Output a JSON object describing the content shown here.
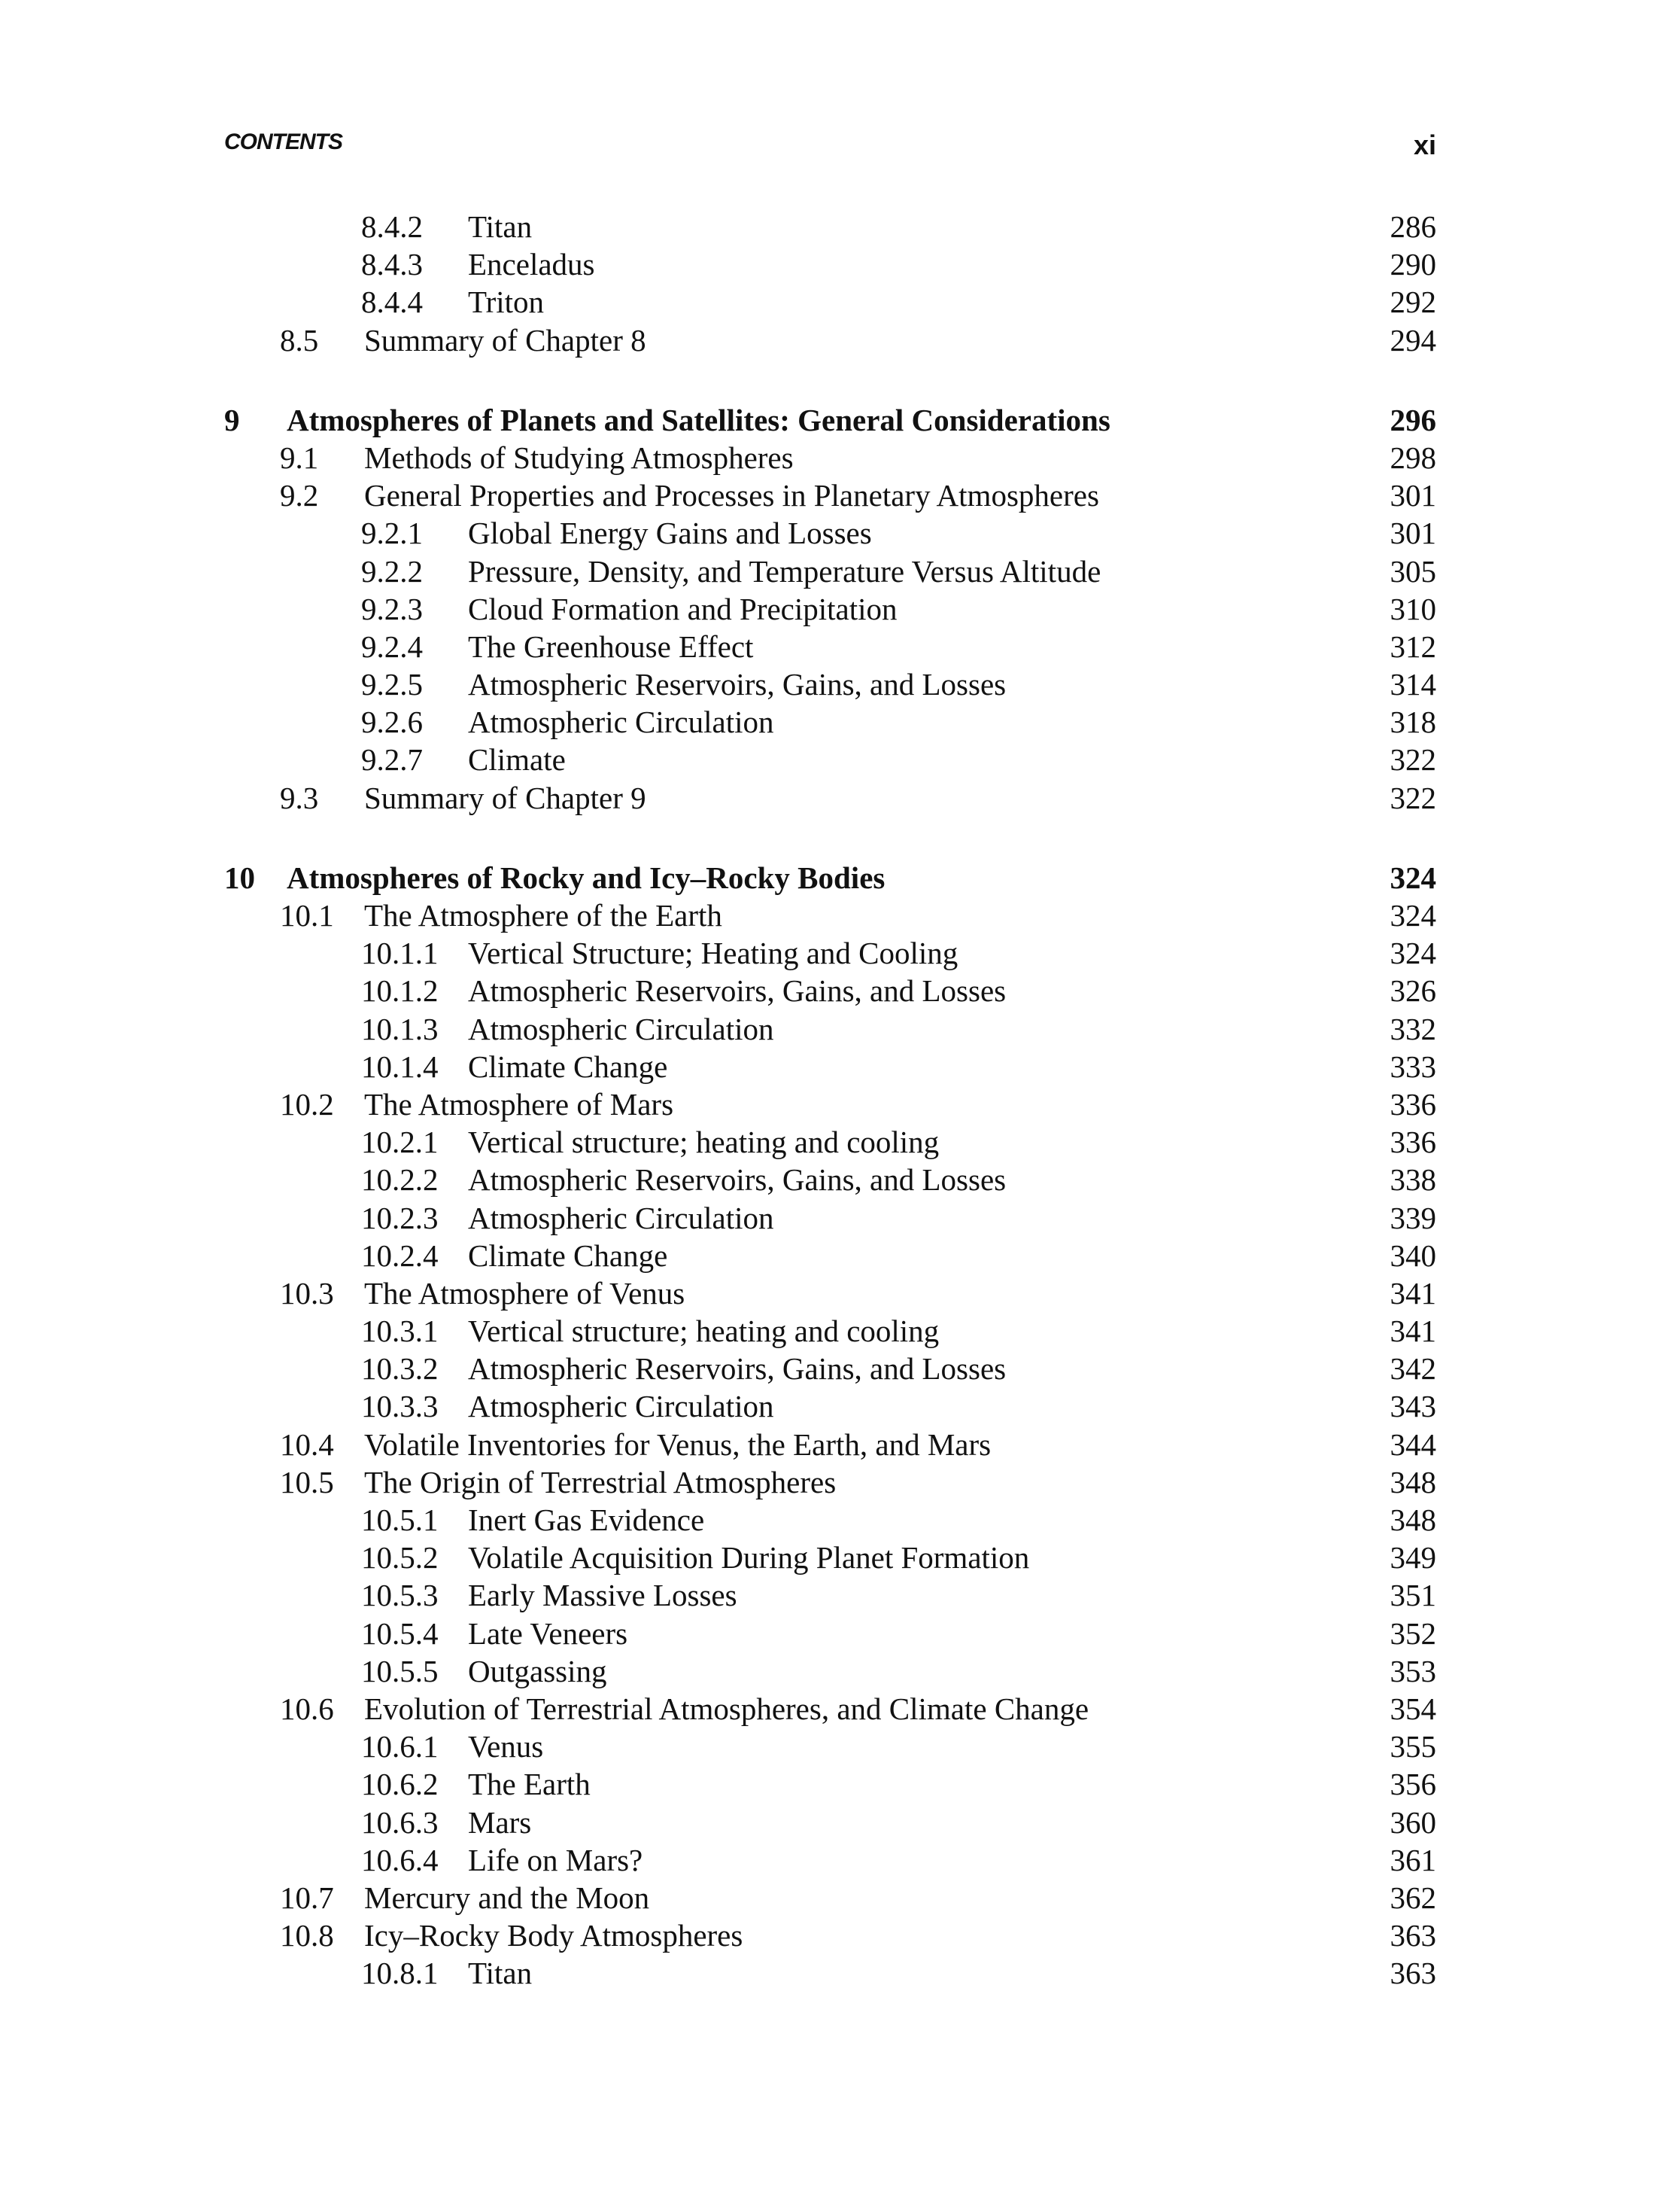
{
  "header": {
    "running_title": "CONTENTS",
    "page_number": "xi"
  },
  "entries": [
    {
      "level": "subsection",
      "num": "8.4.2",
      "title": "Titan",
      "page": "286"
    },
    {
      "level": "subsection",
      "num": "8.4.3",
      "title": "Enceladus",
      "page": "290"
    },
    {
      "level": "subsection",
      "num": "8.4.4",
      "title": "Triton",
      "page": "292"
    },
    {
      "level": "section",
      "num": "8.5",
      "title": "Summary of Chapter 8",
      "page": "294"
    },
    {
      "level": "chapter",
      "num": "9",
      "title": "Atmospheres of Planets and Satellites: General Considerations",
      "page": "296"
    },
    {
      "level": "section",
      "num": "9.1",
      "title": "Methods of Studying Atmospheres",
      "page": "298"
    },
    {
      "level": "section",
      "num": "9.2",
      "title": "General Properties and Processes in Planetary Atmospheres",
      "page": "301"
    },
    {
      "level": "subsection",
      "num": "9.2.1",
      "title": "Global Energy Gains and Losses",
      "page": "301"
    },
    {
      "level": "subsection",
      "num": "9.2.2",
      "title": "Pressure, Density, and Temperature Versus Altitude",
      "page": "305"
    },
    {
      "level": "subsection",
      "num": "9.2.3",
      "title": "Cloud Formation and Precipitation",
      "page": "310"
    },
    {
      "level": "subsection",
      "num": "9.2.4",
      "title": "The Greenhouse Effect",
      "page": "312"
    },
    {
      "level": "subsection",
      "num": "9.2.5",
      "title": "Atmospheric Reservoirs, Gains, and Losses",
      "page": "314"
    },
    {
      "level": "subsection",
      "num": "9.2.6",
      "title": "Atmospheric Circulation",
      "page": "318"
    },
    {
      "level": "subsection",
      "num": "9.2.7",
      "title": "Climate",
      "page": "322"
    },
    {
      "level": "section",
      "num": "9.3",
      "title": "Summary of Chapter 9",
      "page": "322"
    },
    {
      "level": "chapter",
      "num": "10",
      "title": "Atmospheres of Rocky and Icy–Rocky Bodies",
      "page": "324"
    },
    {
      "level": "section",
      "num": "10.1",
      "title": "The Atmosphere of the Earth",
      "page": "324"
    },
    {
      "level": "subsection",
      "num": "10.1.1",
      "title": "Vertical Structure; Heating and Cooling",
      "page": "324"
    },
    {
      "level": "subsection",
      "num": "10.1.2",
      "title": "Atmospheric Reservoirs, Gains, and Losses",
      "page": "326"
    },
    {
      "level": "subsection",
      "num": "10.1.3",
      "title": "Atmospheric Circulation",
      "page": "332"
    },
    {
      "level": "subsection",
      "num": "10.1.4",
      "title": "Climate Change",
      "page": "333"
    },
    {
      "level": "section",
      "num": "10.2",
      "title": "The Atmosphere of Mars",
      "page": "336"
    },
    {
      "level": "subsection",
      "num": "10.2.1",
      "title": "Vertical structure; heating and cooling",
      "page": "336"
    },
    {
      "level": "subsection",
      "num": "10.2.2",
      "title": "Atmospheric Reservoirs, Gains, and Losses",
      "page": "338"
    },
    {
      "level": "subsection",
      "num": "10.2.3",
      "title": "Atmospheric Circulation",
      "page": "339"
    },
    {
      "level": "subsection",
      "num": "10.2.4",
      "title": "Climate Change",
      "page": "340"
    },
    {
      "level": "section",
      "num": "10.3",
      "title": "The Atmosphere of Venus",
      "page": "341"
    },
    {
      "level": "subsection",
      "num": "10.3.1",
      "title": "Vertical structure; heating and cooling",
      "page": "341"
    },
    {
      "level": "subsection",
      "num": "10.3.2",
      "title": "Atmospheric Reservoirs, Gains, and Losses",
      "page": "342"
    },
    {
      "level": "subsection",
      "num": "10.3.3",
      "title": "Atmospheric Circulation",
      "page": "343"
    },
    {
      "level": "section",
      "num": "10.4",
      "title": "Volatile Inventories for Venus, the Earth, and Mars",
      "page": "344"
    },
    {
      "level": "section",
      "num": "10.5",
      "title": "The Origin of Terrestrial Atmospheres",
      "page": "348"
    },
    {
      "level": "subsection",
      "num": "10.5.1",
      "title": "Inert Gas Evidence",
      "page": "348"
    },
    {
      "level": "subsection",
      "num": "10.5.2",
      "title": "Volatile Acquisition During Planet Formation",
      "page": "349"
    },
    {
      "level": "subsection",
      "num": "10.5.3",
      "title": "Early Massive Losses",
      "page": "351"
    },
    {
      "level": "subsection",
      "num": "10.5.4",
      "title": "Late Veneers",
      "page": "352"
    },
    {
      "level": "subsection",
      "num": "10.5.5",
      "title": "Outgassing",
      "page": "353"
    },
    {
      "level": "section",
      "num": "10.6",
      "title": "Evolution of Terrestrial Atmospheres, and Climate Change",
      "page": "354"
    },
    {
      "level": "subsection",
      "num": "10.6.1",
      "title": "Venus",
      "page": "355"
    },
    {
      "level": "subsection",
      "num": "10.6.2",
      "title": "The Earth",
      "page": "356"
    },
    {
      "level": "subsection",
      "num": "10.6.3",
      "title": "Mars",
      "page": "360"
    },
    {
      "level": "subsection",
      "num": "10.6.4",
      "title": "Life on Mars?",
      "page": "361"
    },
    {
      "level": "section",
      "num": "10.7",
      "title": "Mercury and the Moon",
      "page": "362"
    },
    {
      "level": "section",
      "num": "10.8",
      "title": "Icy–Rocky Body Atmospheres",
      "page": "363"
    },
    {
      "level": "subsection",
      "num": "10.8.1",
      "title": "Titan",
      "page": "363"
    }
  ]
}
